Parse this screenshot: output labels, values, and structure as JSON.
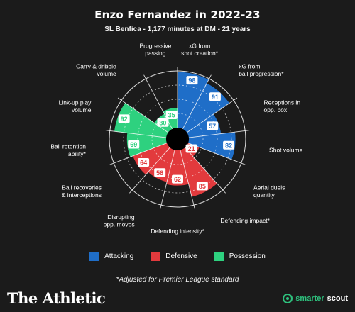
{
  "header": {
    "title": "Enzo Fernandez in 2022-23",
    "subtitle": "SL Benfica - 1,177 minutes at DM - 21 years"
  },
  "colors": {
    "Attacking": "#1f6ec8",
    "Defensive": "#e23a3d",
    "Possession": "#2ed17f",
    "background": "#1b1b1b",
    "grid": "#ffffff"
  },
  "chart_data": {
    "type": "polar-bar",
    "title": "Enzo Fernandez in 2022-23",
    "subtitle": "SL Benfica - 1,177 minutes at DM - 21 years",
    "rlim": [
      0,
      100
    ],
    "grid": true,
    "legend_position": "bottom",
    "metrics": [
      {
        "label": "xG from\nshot creation*",
        "value": 98,
        "category": "Attacking"
      },
      {
        "label": "xG from\nball progression*",
        "value": 91,
        "category": "Attacking"
      },
      {
        "label": "Receptions in\nopp. box",
        "value": 57,
        "category": "Attacking"
      },
      {
        "label": "Shot volume",
        "value": 82,
        "category": "Attacking"
      },
      {
        "label": "Aerial duels\nquantity",
        "value": 21,
        "category": "Defensive"
      },
      {
        "label": "Defending impact*",
        "value": 85,
        "category": "Defensive"
      },
      {
        "label": "Defending intensity*",
        "value": 62,
        "category": "Defensive"
      },
      {
        "label": "Disrupting\nopp. moves",
        "value": 58,
        "category": "Defensive"
      },
      {
        "label": "Ball recoveries\n& interceptions",
        "value": 64,
        "category": "Defensive"
      },
      {
        "label": "Ball retention\nability*",
        "value": 69,
        "category": "Possession"
      },
      {
        "label": "Link-up play\nvolume",
        "value": 92,
        "category": "Possession"
      },
      {
        "label": "Carry & dribble\nvolume",
        "value": 30,
        "category": "Possession"
      },
      {
        "label": "Progressive\npassing",
        "value": 35,
        "category": "Possession"
      }
    ]
  },
  "legend": {
    "items": [
      {
        "label": "Attacking",
        "color": "#1f6ec8"
      },
      {
        "label": "Defensive",
        "color": "#e23a3d"
      },
      {
        "label": "Possession",
        "color": "#2ed17f"
      }
    ]
  },
  "footer": {
    "footnote": "*Adjusted for Premier League standard",
    "brand_left": "The Athletic",
    "brand_right_a": "smarter",
    "brand_right_b": "scout"
  }
}
